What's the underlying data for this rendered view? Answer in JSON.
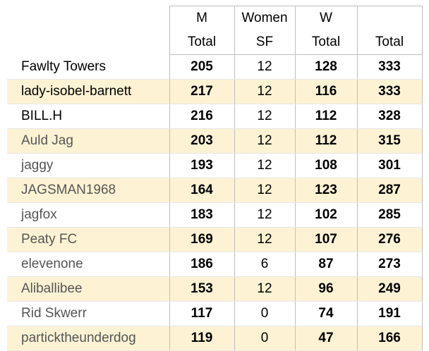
{
  "columns": {
    "m": {
      "line1": "M",
      "line2": "Total"
    },
    "sf": {
      "line1": "Women",
      "line2": "SF"
    },
    "w": {
      "line1": "W",
      "line2": "Total"
    },
    "total": {
      "line1": "",
      "line2": "Total"
    }
  },
  "rows": [
    {
      "name": "Fawlty Towers",
      "m": "205",
      "sf": "12",
      "w": "128",
      "total": "333"
    },
    {
      "name": "lady-isobel-barnett",
      "m": "217",
      "sf": "12",
      "w": "116",
      "total": "333"
    },
    {
      "name": "BILL.H",
      "m": "216",
      "sf": "12",
      "w": "112",
      "total": "328"
    },
    {
      "name": "Auld Jag",
      "m": "203",
      "sf": "12",
      "w": "112",
      "total": "315"
    },
    {
      "name": "jaggy",
      "m": "193",
      "sf": "12",
      "w": "108",
      "total": "301"
    },
    {
      "name": "JAGSMAN1968",
      "m": "164",
      "sf": "12",
      "w": "123",
      "total": "287"
    },
    {
      "name": "jagfox",
      "m": "183",
      "sf": "12",
      "w": "102",
      "total": "285"
    },
    {
      "name": "Peaty FC",
      "m": "169",
      "sf": "12",
      "w": "107",
      "total": "276"
    },
    {
      "name": "elevenone",
      "m": "186",
      "sf": "6",
      "w": "87",
      "total": "273"
    },
    {
      "name": "Aliballibee",
      "m": "153",
      "sf": "12",
      "w": "96",
      "total": "249"
    },
    {
      "name": "Rid Skwerr",
      "m": "117",
      "sf": "0",
      "w": "74",
      "total": "191"
    },
    {
      "name": "particktheunderdog",
      "m": "119",
      "sf": "0",
      "w": "47",
      "total": "166"
    }
  ],
  "colors": {
    "alt_row": "#fdf3d4",
    "grid": "#bdbdbd",
    "muted_text": "#555555"
  }
}
